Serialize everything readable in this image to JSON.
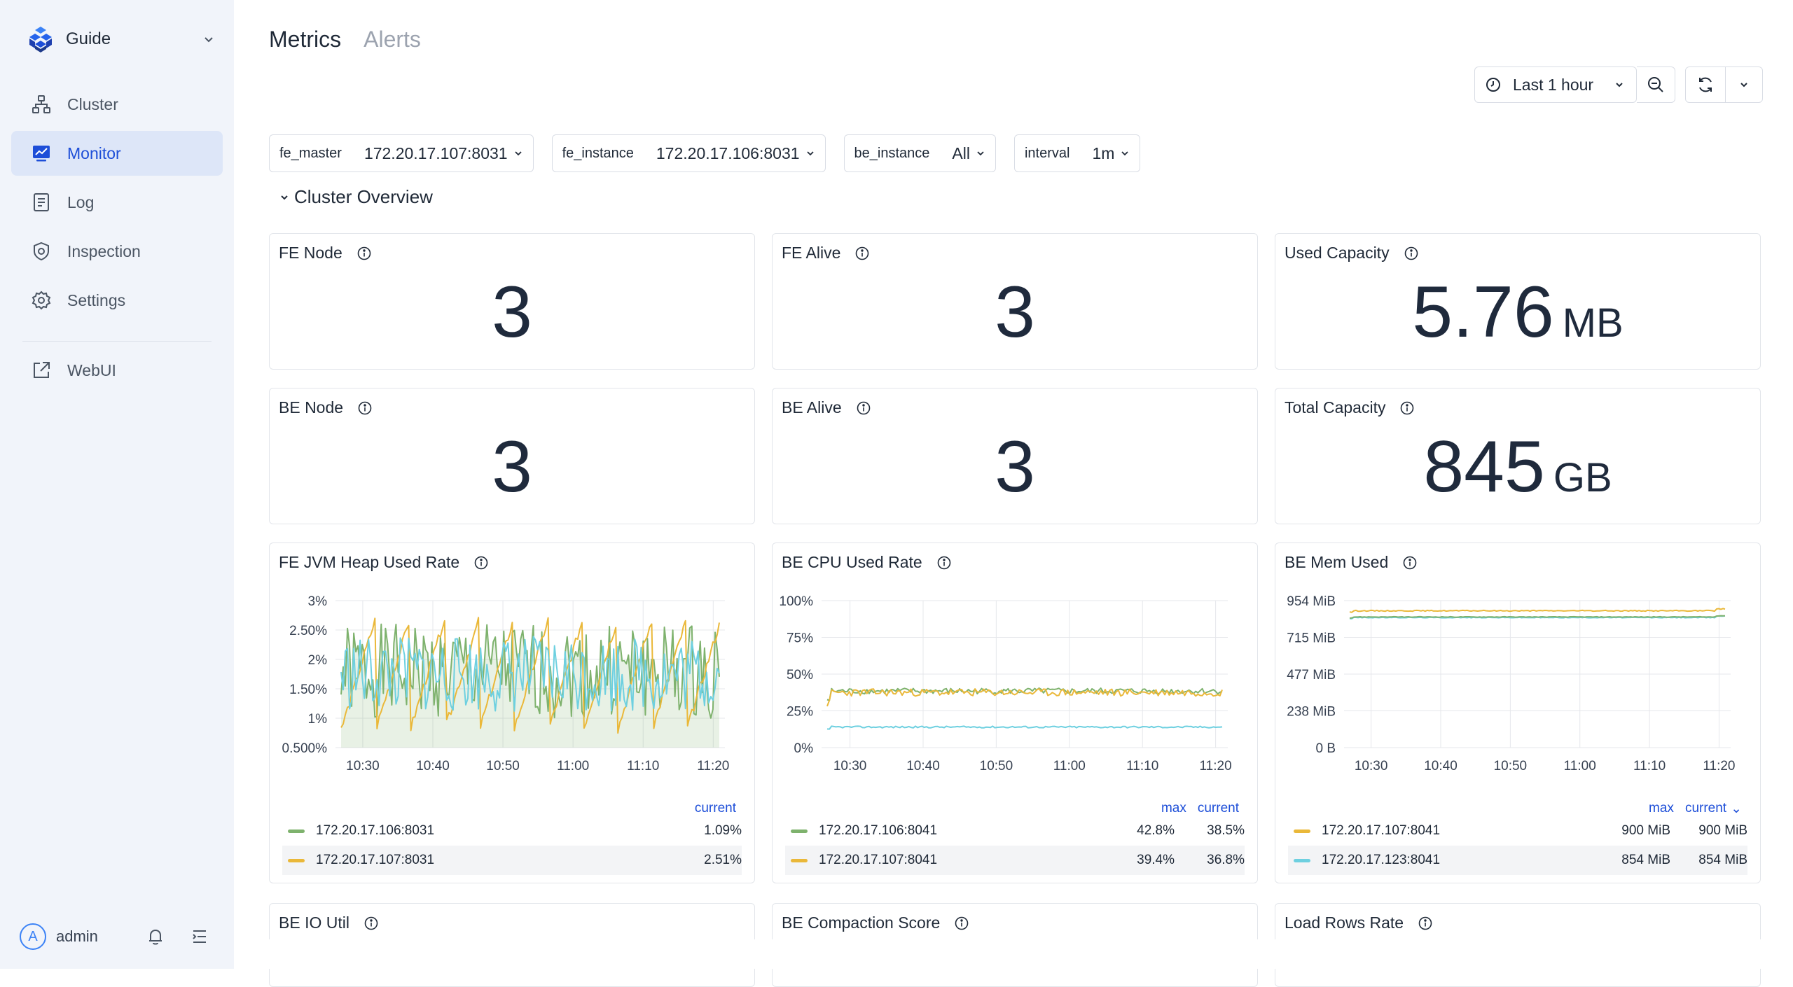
{
  "sidebar": {
    "brand": "Guide",
    "items": [
      {
        "label": "Cluster",
        "icon": "cluster-icon"
      },
      {
        "label": "Monitor",
        "icon": "monitor-icon",
        "active": true
      },
      {
        "label": "Log",
        "icon": "log-icon"
      },
      {
        "label": "Inspection",
        "icon": "shield-icon"
      },
      {
        "label": "Settings",
        "icon": "gear-icon"
      }
    ],
    "external": {
      "label": "WebUI",
      "icon": "external-link-icon"
    },
    "user": {
      "initial": "A",
      "name": "admin"
    }
  },
  "tabs": [
    {
      "label": "Metrics",
      "active": true
    },
    {
      "label": "Alerts",
      "active": false
    }
  ],
  "toolbar": {
    "time_range": "Last 1 hour"
  },
  "variables": [
    {
      "label": "fe_master",
      "value": "172.20.17.107:8031"
    },
    {
      "label": "fe_instance",
      "value": "172.20.17.106:8031"
    },
    {
      "label": "be_instance",
      "value": "All"
    },
    {
      "label": "interval",
      "value": "1m"
    }
  ],
  "row": {
    "title": "Cluster Overview"
  },
  "stats": {
    "fe_node": {
      "title": "FE Node",
      "value": "3"
    },
    "fe_alive": {
      "title": "FE Alive",
      "value": "3"
    },
    "used_capacity": {
      "title": "Used Capacity",
      "value": "5.76",
      "unit": "MB"
    },
    "be_node": {
      "title": "BE Node",
      "value": "3"
    },
    "be_alive": {
      "title": "BE Alive",
      "value": "3"
    },
    "total_capacity": {
      "title": "Total Capacity",
      "value": "845",
      "unit": "GB"
    }
  },
  "charts": {
    "fe_jvm": {
      "title": "FE JVM Heap Used Rate",
      "legend_cols": [
        "current"
      ],
      "legend": [
        {
          "name": "172.20.17.106:8031",
          "color": "#7eb26d",
          "current": "1.09%"
        },
        {
          "name": "172.20.17.107:8031",
          "color": "#eab839",
          "current": "2.51%"
        }
      ]
    },
    "be_cpu": {
      "title": "BE CPU Used Rate",
      "legend_cols": [
        "max",
        "current"
      ],
      "legend": [
        {
          "name": "172.20.17.106:8041",
          "color": "#7eb26d",
          "max": "42.8%",
          "current": "38.5%"
        },
        {
          "name": "172.20.17.107:8041",
          "color": "#eab839",
          "max": "39.4%",
          "current": "36.8%"
        }
      ]
    },
    "be_mem": {
      "title": "BE Mem Used",
      "legend_cols": [
        "max",
        "current"
      ],
      "legend": [
        {
          "name": "172.20.17.107:8041",
          "color": "#eab839",
          "max": "900 MiB",
          "current": "900 MiB"
        },
        {
          "name": "172.20.17.123:8041",
          "color": "#6ed0e0",
          "max": "854 MiB",
          "current": "854 MiB"
        }
      ]
    }
  },
  "bottom_panels": [
    {
      "title": "BE IO Util"
    },
    {
      "title": "BE Compaction Score"
    },
    {
      "title": "Load Rows Rate"
    }
  ],
  "chart_data": [
    {
      "type": "line",
      "title": "FE JVM Heap Used Rate",
      "x": [
        "10:30",
        "10:40",
        "10:50",
        "11:00",
        "11:10",
        "11:20"
      ],
      "yticks": [
        "0.500%",
        "1%",
        "1.50%",
        "2%",
        "2.50%",
        "3%"
      ],
      "ylim": [
        0.5,
        3
      ],
      "series": [
        {
          "name": "172.20.17.106:8031",
          "color": "#7eb26d",
          "shape": "noise",
          "low": 1.0,
          "high": 2.6,
          "area": true
        },
        {
          "name": "172.20.17.107:8031",
          "color": "#eab839",
          "shape": "sawtooth",
          "low": 0.8,
          "high": 2.7,
          "periods": 11
        },
        {
          "color": "#6ed0e0",
          "shape": "noise",
          "low": 1.1,
          "high": 2.4,
          "seed": 7
        }
      ]
    },
    {
      "type": "line",
      "title": "BE CPU Used Rate",
      "x": [
        "10:30",
        "10:40",
        "10:50",
        "11:00",
        "11:10",
        "11:20"
      ],
      "yticks": [
        "0%",
        "25%",
        "50%",
        "75%",
        "100%"
      ],
      "ylim": [
        0,
        100
      ],
      "series": [
        {
          "name": "172.20.17.106:8041",
          "color": "#7eb26d",
          "shape": "flat",
          "level": 38.5,
          "jitter": 2
        },
        {
          "name": "172.20.17.107:8041",
          "color": "#eab839",
          "shape": "flat",
          "level": 37.5,
          "jitter": 2.5,
          "seed": 3
        },
        {
          "color": "#6ed0e0",
          "shape": "flat",
          "level": 14,
          "jitter": 0.6,
          "seed": 9
        }
      ]
    },
    {
      "type": "line",
      "title": "BE Mem Used",
      "x": [
        "10:30",
        "10:40",
        "10:50",
        "11:00",
        "11:10",
        "11:20"
      ],
      "yticks": [
        "0 B",
        "238 MiB",
        "477 MiB",
        "715 MiB",
        "954 MiB"
      ],
      "ylim": [
        0,
        954
      ],
      "series": [
        {
          "name": "172.20.17.107:8041",
          "color": "#eab839",
          "shape": "flat",
          "level": 888,
          "jitter": 3,
          "rise": 12
        },
        {
          "name": "172.20.17.123:8041",
          "color": "#6ed0e0",
          "shape": "flat",
          "level": 844,
          "jitter": 2,
          "rise": 10
        },
        {
          "color": "#7eb26d",
          "shape": "flat",
          "level": 848,
          "jitter": 2,
          "rise": 8,
          "seed": 5
        }
      ]
    }
  ]
}
